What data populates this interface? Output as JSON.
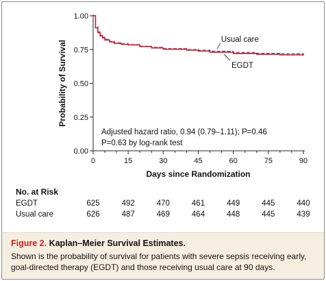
{
  "chart_data": {
    "type": "line",
    "xlabel": "Days since Randomization",
    "ylabel": "Probability of Survival",
    "xlim": [
      0,
      90
    ],
    "ylim": [
      0,
      1.0
    ],
    "x_ticks": [
      "0",
      "15",
      "30",
      "45",
      "60",
      "75",
      "90"
    ],
    "y_ticks": [
      "0.00",
      "0.25",
      "0.50",
      "0.75",
      "1.00"
    ],
    "grid": false,
    "series": [
      {
        "name": "Usual care",
        "color": "#4a6fb5",
        "style": "dashed",
        "x": [
          0,
          1,
          2,
          3,
          4,
          5,
          7,
          9,
          12,
          15,
          20,
          25,
          30,
          40,
          45,
          50,
          60,
          70,
          80,
          90
        ],
        "y": [
          1.0,
          0.92,
          0.88,
          0.855,
          0.84,
          0.825,
          0.81,
          0.8,
          0.792,
          0.786,
          0.774,
          0.766,
          0.757,
          0.75,
          0.745,
          0.737,
          0.728,
          0.722,
          0.718,
          0.712
        ]
      },
      {
        "name": "EGDT",
        "color": "#d0202a",
        "style": "solid",
        "x": [
          0,
          1,
          2,
          3,
          4,
          5,
          7,
          9,
          12,
          15,
          20,
          25,
          30,
          40,
          45,
          50,
          60,
          70,
          80,
          90
        ],
        "y": [
          1.0,
          0.91,
          0.875,
          0.85,
          0.835,
          0.82,
          0.806,
          0.795,
          0.788,
          0.784,
          0.772,
          0.762,
          0.752,
          0.745,
          0.738,
          0.73,
          0.72,
          0.714,
          0.71,
          0.704
        ]
      }
    ],
    "annotations": [
      "Adjusted hazard ratio, 0.94 (0.79–1.11); P=0.46",
      "P=0.63 by log-rank test"
    ]
  },
  "risk_table": {
    "title": "No. at Risk",
    "rows": [
      {
        "label": "EGDT",
        "values": [
          "625",
          "492",
          "470",
          "461",
          "449",
          "445",
          "440"
        ]
      },
      {
        "label": "Usual care",
        "values": [
          "626",
          "487",
          "469",
          "464",
          "448",
          "445",
          "439"
        ]
      }
    ]
  },
  "caption": {
    "figure_number": "Figure 2.",
    "title": "Kaplan–Meier Survival Estimates.",
    "body": "Shown is the probability of survival for patients with severe sepsis receiving early, goal-directed therapy (EGDT) and those receiving usual care at 90 days."
  }
}
